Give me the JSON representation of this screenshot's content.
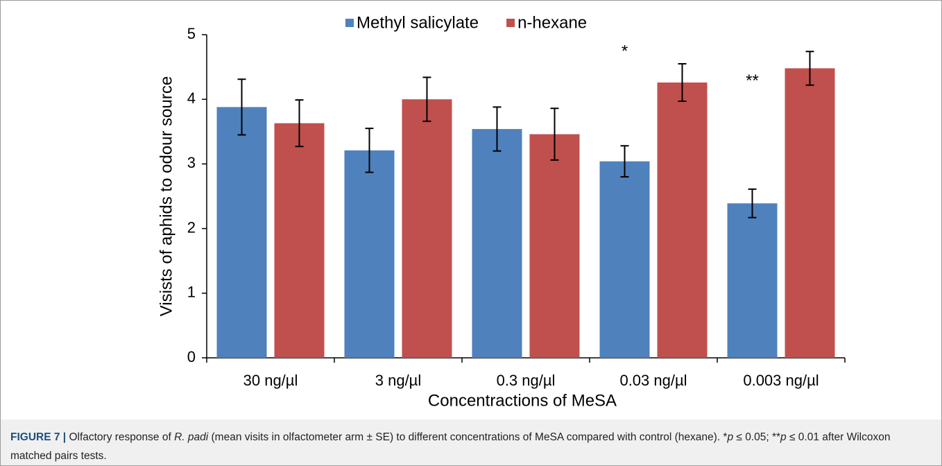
{
  "chart_data": {
    "type": "bar",
    "title": null,
    "ylabel": "Visists of aphids to odour source",
    "xlabel": "Concentractions of MeSA",
    "categories": [
      "30 ng/µl",
      "3 ng/µl",
      "0.3 ng/µl",
      "0.03 ng/µl",
      "0.003 ng/µl"
    ],
    "series": [
      {
        "name": "Methyl salicylate",
        "color": "#4f81bd",
        "values": [
          3.88,
          3.21,
          3.54,
          3.04,
          2.39
        ],
        "errors": [
          0.43,
          0.34,
          0.34,
          0.24,
          0.22
        ]
      },
      {
        "name": "n-hexane",
        "color": "#c0504d",
        "values": [
          3.63,
          4.0,
          3.46,
          4.26,
          4.48
        ],
        "errors": [
          0.36,
          0.34,
          0.4,
          0.29,
          0.26
        ]
      }
    ],
    "ylim": [
      0,
      5
    ],
    "yticks": [
      0,
      1,
      2,
      3,
      4,
      5
    ],
    "legend": "top",
    "annotations": [
      {
        "text": "*",
        "category": "0.03 ng/µl"
      },
      {
        "text": "**",
        "category": "0.003 ng/µl"
      }
    ]
  },
  "caption": [
    {
      "text": "FIGURE 7 |",
      "style": "bold"
    },
    {
      "text": " Olfactory response of ",
      "style": "normal"
    },
    {
      "text": "R. padi",
      "style": "italic"
    },
    {
      "text": " (mean visits in olfactometer arm ± SE) to different concentrations of MeSA compared with control (hexane). *",
      "style": "normal"
    },
    {
      "text": "p",
      "style": "italic"
    },
    {
      "text": " ≤ 0.05; **",
      "style": "normal"
    },
    {
      "text": "p",
      "style": "italic"
    },
    {
      "text": " ≤ 0.01 after Wilcoxon matched pairs tests.",
      "style": "normal"
    }
  ]
}
